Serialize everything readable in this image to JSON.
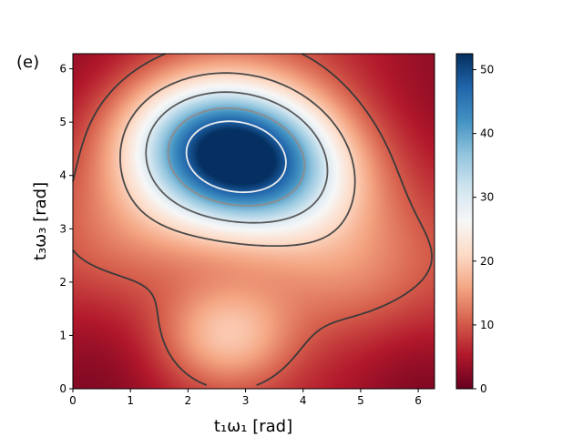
{
  "chart_data": {
    "type": "heatmap",
    "panel_label": "(e)",
    "xlabel": "t₁ω₁ [rad]",
    "ylabel": "t₃ω₃ [rad]",
    "xlim": [
      0,
      6.283
    ],
    "ylim": [
      0,
      6.283
    ],
    "xticks": [
      0,
      1,
      2,
      3,
      4,
      5,
      6
    ],
    "yticks": [
      0,
      1,
      2,
      3,
      4,
      5,
      6
    ],
    "colorbar": {
      "cmap": "RdBu",
      "vmin": 0,
      "vmax": 52.5,
      "ticks": [
        0,
        10,
        20,
        30,
        40,
        50
      ]
    },
    "peaks": [
      {
        "x": 2.85,
        "y": 4.35,
        "value": 52.5
      },
      {
        "x": 2.7,
        "y": 1.0,
        "value": 17
      }
    ],
    "minima": [
      {
        "x": 0.2,
        "y": 0.5,
        "value": 2
      },
      {
        "x": 6.1,
        "y": 0.2,
        "value": 1
      },
      {
        "x": 0.5,
        "y": 5.9,
        "value": 3
      },
      {
        "x": 6.1,
        "y": 5.8,
        "value": 3
      }
    ],
    "contour_levels": [
      10,
      20,
      30,
      40,
      48
    ]
  }
}
